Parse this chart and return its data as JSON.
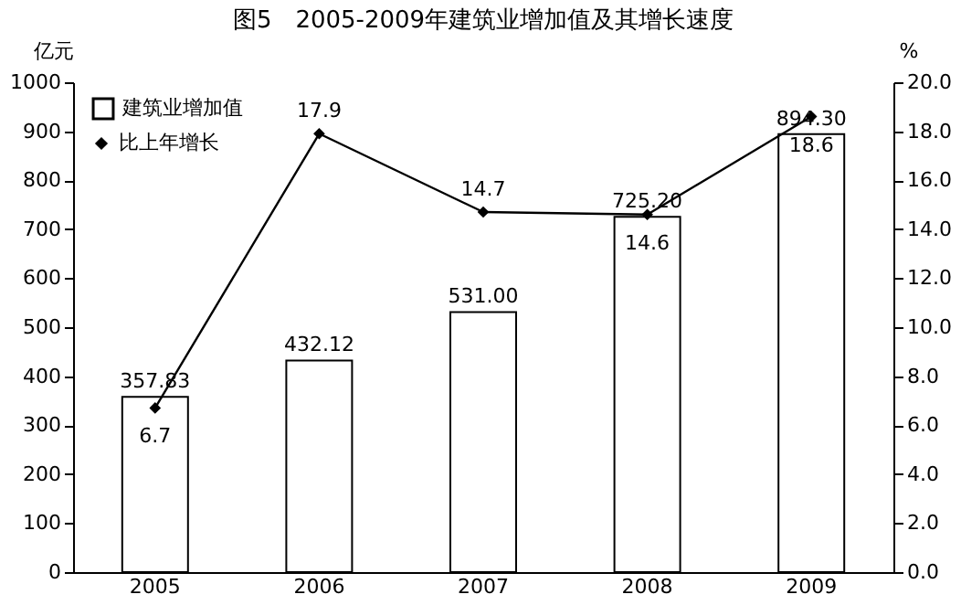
{
  "chart_data": {
    "type": "bar",
    "title": "图5　2005-2009年建筑业增加值及其增长速度",
    "ylabel": "亿元",
    "y2label": "%",
    "categories": [
      "2005",
      "2006",
      "2007",
      "2008",
      "2009"
    ],
    "series": [
      {
        "name": "建筑业增加值",
        "color": "#ffffff",
        "values": [
          357.83,
          432.12,
          531.0,
          725.2,
          894.3
        ],
        "value_labels": [
          "357.83",
          "432.12",
          "531.00",
          "725.20",
          "894.30"
        ]
      },
      {
        "name": "比上年增长",
        "type": "line",
        "axis": "y2",
        "color": "#000000",
        "marker": "diamond",
        "values": [
          6.7,
          17.9,
          14.7,
          14.6,
          18.6
        ],
        "value_labels": [
          "6.7",
          "17.9",
          "14.7",
          "14.6",
          "18.6"
        ]
      }
    ],
    "ylim": [
      0,
      1000
    ],
    "yticks": [
      0,
      100,
      200,
      300,
      400,
      500,
      600,
      700,
      800,
      900,
      1000
    ],
    "y2lim": [
      0,
      20
    ],
    "y2ticks": [
      {
        "value": 0,
        "label": "0.0"
      },
      {
        "value": 2,
        "label": "2.0"
      },
      {
        "value": 4,
        "label": "4.0"
      },
      {
        "value": 6,
        "label": "6.0"
      },
      {
        "value": 8,
        "label": "8.0"
      },
      {
        "value": 10,
        "label": "10.0"
      },
      {
        "value": 12,
        "label": "12.0"
      },
      {
        "value": 14,
        "label": "14.0"
      },
      {
        "value": 16,
        "label": "16.0"
      },
      {
        "value": 18,
        "label": "18.0"
      },
      {
        "value": 20,
        "label": "20.0"
      }
    ],
    "grid": false,
    "legend": "top left"
  }
}
